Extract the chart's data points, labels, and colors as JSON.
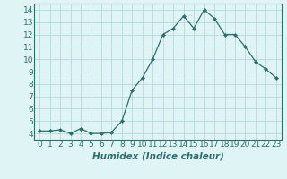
{
  "x": [
    0,
    1,
    2,
    3,
    4,
    5,
    6,
    7,
    8,
    9,
    10,
    11,
    12,
    13,
    14,
    15,
    16,
    17,
    18,
    19,
    20,
    23
  ],
  "y": [
    4.2,
    4.2,
    4.3,
    4.0,
    4.4,
    4.0,
    4.0,
    4.1,
    5.0,
    7.5,
    8.5,
    10.0,
    12.0,
    12.5,
    13.5,
    12.5,
    14.0,
    13.3,
    12.0,
    12.0,
    11.0,
    8.5
  ],
  "x_full": [
    0,
    1,
    2,
    3,
    4,
    5,
    6,
    7,
    8,
    9,
    10,
    11,
    12,
    13,
    14,
    15,
    16,
    17,
    18,
    19,
    20,
    21,
    22,
    23
  ],
  "y_full": [
    4.2,
    4.2,
    4.3,
    4.0,
    4.4,
    4.0,
    4.0,
    4.1,
    5.0,
    7.5,
    8.5,
    10.0,
    12.0,
    12.5,
    13.5,
    12.5,
    14.0,
    13.3,
    12.0,
    12.0,
    11.0,
    9.8,
    9.2,
    8.5
  ],
  "xlabel": "Humidex (Indice chaleur)",
  "ylim": [
    3.5,
    14.5
  ],
  "xlim": [
    -0.5,
    23.5
  ],
  "yticks": [
    4,
    5,
    6,
    7,
    8,
    9,
    10,
    11,
    12,
    13,
    14
  ],
  "xticks": [
    0,
    1,
    2,
    3,
    4,
    5,
    6,
    7,
    8,
    9,
    10,
    11,
    12,
    13,
    14,
    15,
    16,
    17,
    18,
    19,
    20,
    21,
    22,
    23
  ],
  "line_color": "#2d6e6e",
  "marker": "D",
  "marker_size": 2.0,
  "bg_color": "#dff4f4",
  "grid_color": "#b8d8d8",
  "tick_label_fontsize": 6.5,
  "xlabel_fontsize": 7.5
}
